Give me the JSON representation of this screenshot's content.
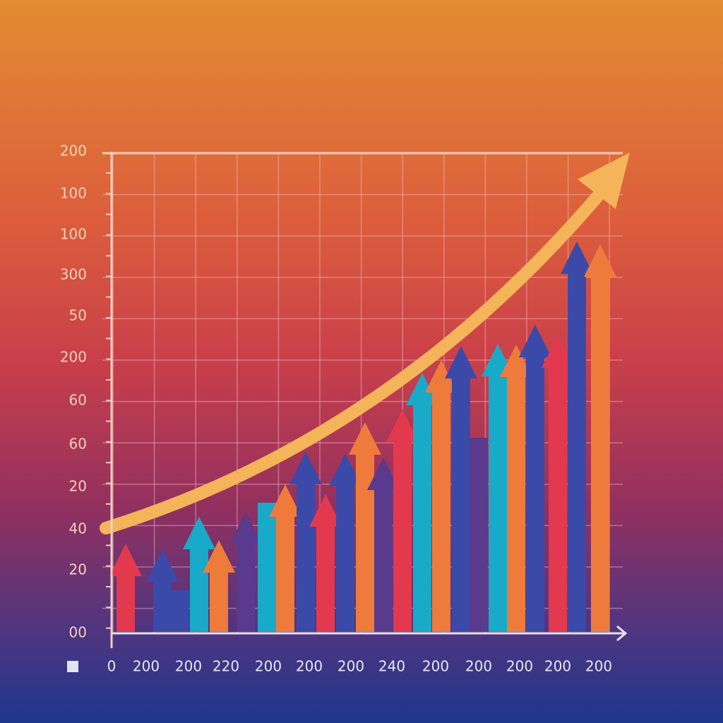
{
  "y_labels": [
    "200",
    "100",
    "100",
    "300",
    "50",
    "200",
    "60",
    "60",
    "20",
    "40",
    "20",
    "00"
  ],
  "x_labels": [
    "0",
    "200",
    "200",
    "220",
    "200",
    "200",
    "200",
    "240",
    "200",
    "200",
    "200",
    "200",
    "200"
  ]
}
